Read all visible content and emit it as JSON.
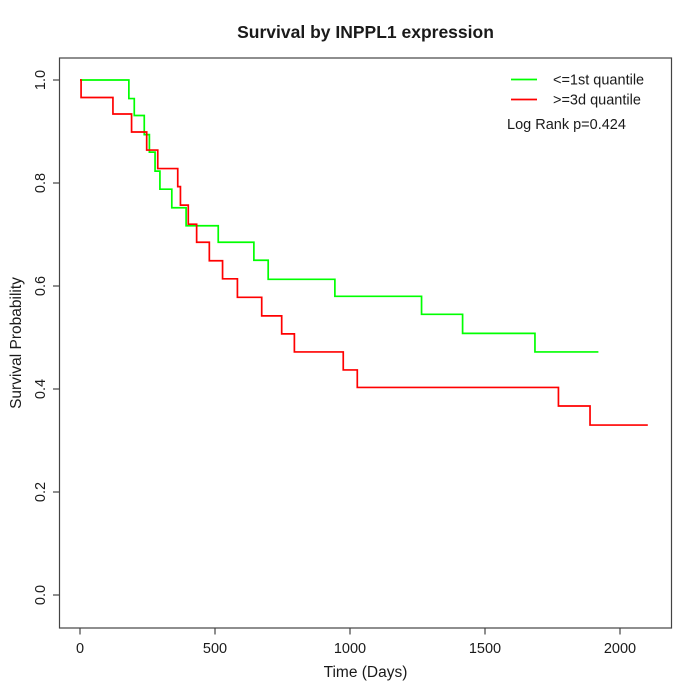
{
  "chart_data": {
    "type": "line",
    "subtype": "kaplan-meier-step-curves",
    "title": "Survival by INPPL1 expression",
    "xlabel": "Time (Days)",
    "ylabel": "Survival Probability",
    "xlim": [
      0,
      2100
    ],
    "ylim": [
      0.0,
      1.0
    ],
    "grid": "off",
    "x_ticks": [
      {
        "value": 0,
        "label": "0"
      },
      {
        "value": 500,
        "label": "500"
      },
      {
        "value": 1000,
        "label": "1000"
      },
      {
        "value": 1500,
        "label": "1500"
      },
      {
        "value": 2000,
        "label": "2000"
      }
    ],
    "y_ticks": [
      {
        "value": 0.0,
        "label": "0.0"
      },
      {
        "value": 0.2,
        "label": "0.2"
      },
      {
        "value": 0.4,
        "label": "0.4"
      },
      {
        "value": 0.6,
        "label": "0.6"
      },
      {
        "value": 0.8,
        "label": "0.8"
      },
      {
        "value": 1.0,
        "label": "1.0"
      }
    ],
    "legend": {
      "position": "top-right",
      "entries": [
        {
          "label": "<=1st quantile",
          "color": "#00ff00"
        },
        {
          "label": ">=3d quantile",
          "color": "#ff0000"
        }
      ]
    },
    "annotation": "Log Rank p=0.424",
    "series": [
      {
        "name": "<=1st quantile",
        "color": "#00ff00",
        "end_time": 1920,
        "points": [
          [
            0,
            1.0
          ],
          [
            181,
            0.964
          ],
          [
            201,
            0.931
          ],
          [
            238,
            0.894
          ],
          [
            257,
            0.86
          ],
          [
            278,
            0.823
          ],
          [
            296,
            0.788
          ],
          [
            340,
            0.752
          ],
          [
            393,
            0.717
          ],
          [
            512,
            0.685
          ],
          [
            644,
            0.65
          ],
          [
            697,
            0.613
          ],
          [
            944,
            0.58
          ],
          [
            1265,
            0.545
          ],
          [
            1417,
            0.508
          ],
          [
            1685,
            0.472
          ]
        ]
      },
      {
        "name": ">=3d quantile",
        "color": "#ff0000",
        "end_time": 2103,
        "points": [
          [
            0,
            1.0
          ],
          [
            4,
            0.966
          ],
          [
            122,
            0.934
          ],
          [
            191,
            0.899
          ],
          [
            247,
            0.864
          ],
          [
            288,
            0.828
          ],
          [
            362,
            0.793
          ],
          [
            372,
            0.757
          ],
          [
            401,
            0.72
          ],
          [
            432,
            0.685
          ],
          [
            479,
            0.649
          ],
          [
            528,
            0.614
          ],
          [
            583,
            0.578
          ],
          [
            673,
            0.542
          ],
          [
            747,
            0.507
          ],
          [
            794,
            0.472
          ],
          [
            975,
            0.437
          ],
          [
            1027,
            0.403
          ],
          [
            1772,
            0.367
          ],
          [
            1889,
            0.33
          ]
        ]
      }
    ],
    "colors": {
      "axis": "#444444",
      "text": "#1a1a1a",
      "background": "#ffffff"
    }
  }
}
